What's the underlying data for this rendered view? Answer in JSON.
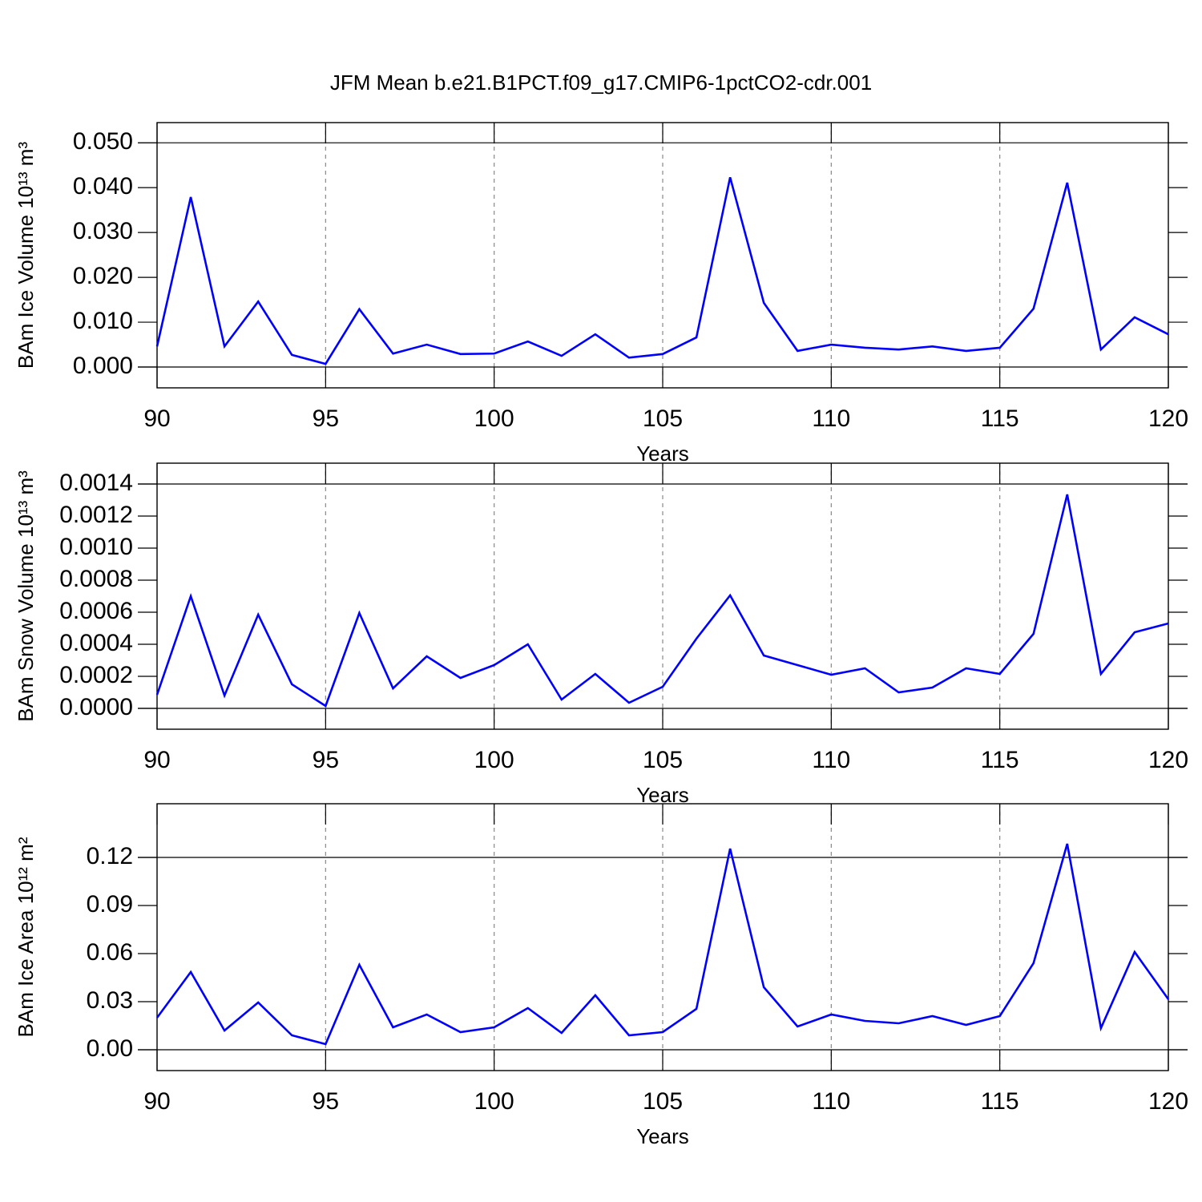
{
  "chart_data": [
    {
      "type": "line",
      "title": "JFM Mean b.e21.B1PCT.f09_g17.CMIP6-1pctCO2-cdr.001",
      "xlabel": "Years",
      "ylabel": "BAm Ice Volume 10¹³ m³",
      "x": [
        90,
        91,
        92,
        93,
        94,
        95,
        96,
        97,
        98,
        99,
        100,
        101,
        102,
        103,
        104,
        105,
        106,
        107,
        108,
        109,
        110,
        111,
        112,
        113,
        114,
        115,
        116,
        117,
        118,
        119,
        120
      ],
      "series": [
        {
          "color": "#0000ff",
          "values": [
            0.0046,
            0.0379,
            0.0046,
            0.0146,
            0.0027,
            0.0007,
            0.0129,
            0.003,
            0.005,
            0.0029,
            0.003,
            0.0057,
            0.0025,
            0.0073,
            0.0021,
            0.0029,
            0.0066,
            0.0423,
            0.0143,
            0.0036,
            0.005,
            0.0043,
            0.0039,
            0.0046,
            0.0036,
            0.0043,
            0.013,
            0.0411,
            0.0039,
            0.0111,
            0.0073
          ]
        }
      ],
      "xlim": [
        90,
        120
      ],
      "xticks": [
        90,
        95,
        100,
        105,
        110,
        115,
        120
      ],
      "ylim": [
        -0.00464,
        0.0545
      ],
      "yticks": [
        {
          "value": 0,
          "label": "0.000"
        },
        {
          "value": 0.01,
          "label": "0.010"
        },
        {
          "value": 0.02,
          "label": "0.020"
        },
        {
          "value": 0.03,
          "label": "0.030"
        },
        {
          "value": 0.04,
          "label": "0.040"
        },
        {
          "value": 0.05,
          "label": "0.050"
        }
      ],
      "grid": true
    },
    {
      "type": "line",
      "xlabel": "Years",
      "ylabel": "BAm Snow Volume 10¹³ m³",
      "x": [
        90,
        91,
        92,
        93,
        94,
        95,
        96,
        97,
        98,
        99,
        100,
        101,
        102,
        103,
        104,
        105,
        106,
        107,
        108,
        109,
        110,
        111,
        112,
        113,
        114,
        115,
        116,
        117,
        118,
        119,
        120
      ],
      "series": [
        {
          "color": "#0000ff",
          "values": [
            8.5e-05,
            0.0007,
            8e-05,
            0.000585,
            0.00015,
            1.5e-05,
            0.000595,
            0.000125,
            0.000325,
            0.00019,
            0.00027,
            0.0004,
            5.5e-05,
            0.000215,
            3.5e-05,
            0.000135,
            0.000435,
            0.000705,
            0.00033,
            0.00027,
            0.00021,
            0.00025,
            0.0001,
            0.00013,
            0.00025,
            0.000215,
            0.000465,
            0.001335,
            0.000215,
            0.000475,
            0.00053
          ]
        }
      ],
      "xlim": [
        90,
        120
      ],
      "xticks": [
        90,
        95,
        100,
        105,
        110,
        115,
        120
      ],
      "ylim": [
        -0.00013,
        0.00153
      ],
      "yticks": [
        {
          "value": 0,
          "label": "0.0000"
        },
        {
          "value": 0.0002,
          "label": "0.0002"
        },
        {
          "value": 0.0004,
          "label": "0.0004"
        },
        {
          "value": 0.0006,
          "label": "0.0006"
        },
        {
          "value": 0.0008,
          "label": "0.0008"
        },
        {
          "value": 0.001,
          "label": "0.0010"
        },
        {
          "value": 0.0012,
          "label": "0.0012"
        },
        {
          "value": 0.0014,
          "label": "0.0014"
        }
      ],
      "grid": true
    },
    {
      "type": "line",
      "xlabel": "Years",
      "ylabel": "BAm Ice Area 10¹² m²",
      "x": [
        90,
        91,
        92,
        93,
        94,
        95,
        96,
        97,
        98,
        99,
        100,
        101,
        102,
        103,
        104,
        105,
        106,
        107,
        108,
        109,
        110,
        111,
        112,
        113,
        114,
        115,
        116,
        117,
        118,
        119,
        120
      ],
      "series": [
        {
          "color": "#0000ff",
          "values": [
            0.02,
            0.0485,
            0.012,
            0.0295,
            0.009,
            0.0035,
            0.053,
            0.014,
            0.022,
            0.011,
            0.014,
            0.026,
            0.0105,
            0.034,
            0.009,
            0.011,
            0.0255,
            0.1255,
            0.039,
            0.0145,
            0.022,
            0.018,
            0.0165,
            0.021,
            0.0155,
            0.021,
            0.054,
            0.1285,
            0.0135,
            0.061,
            0.0315
          ]
        }
      ],
      "xlim": [
        90,
        120
      ],
      "xticks": [
        90,
        95,
        100,
        105,
        110,
        115,
        120
      ],
      "ylim": [
        -0.013,
        0.1535
      ],
      "yticks": [
        {
          "value": 0,
          "label": "0.00"
        },
        {
          "value": 0.03,
          "label": "0.03"
        },
        {
          "value": 0.06,
          "label": "0.06"
        },
        {
          "value": 0.09,
          "label": "0.09"
        },
        {
          "value": 0.12,
          "label": "0.12"
        }
      ],
      "grid": true
    }
  ]
}
